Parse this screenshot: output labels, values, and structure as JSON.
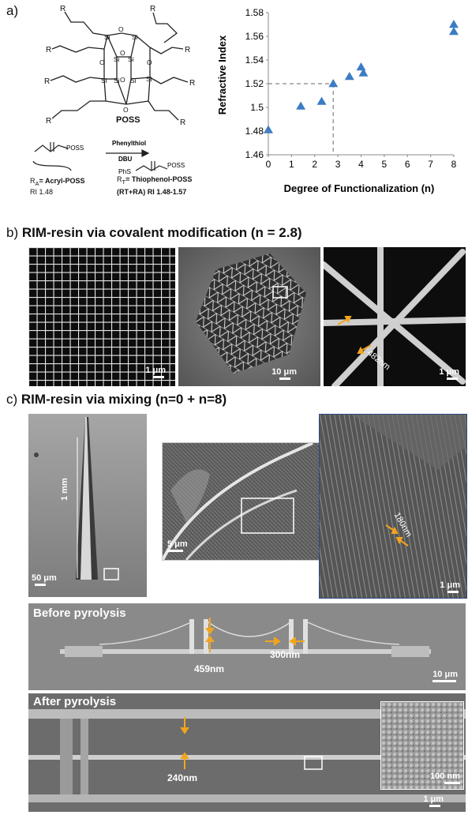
{
  "panel_a": {
    "letter": "a)",
    "molecule": {
      "r_labels": [
        "R",
        "R",
        "R",
        "R",
        "R",
        "R",
        "R",
        "R"
      ],
      "si_label": "Si",
      "o_label": "O",
      "name": "POSS"
    },
    "reaction": {
      "reagent1": "Phenylthiol",
      "reagent2": "DBU",
      "reactant_poss": "POSS",
      "reactant_label_prefix": "R",
      "reactant_label_sub": "A",
      "reactant_label_rest": "= Acryl-POSS",
      "reactant_ri": "RI 1.48",
      "product_phs": "PhS",
      "product_poss": "POSS",
      "product_label_prefix": "R",
      "product_label_sub": "T",
      "product_label_rest": "= Thiophenol-POSS",
      "product_mix": "(RT+RA) RI 1.48-1.57"
    }
  },
  "chart_data": {
    "type": "scatter",
    "xlabel": "Degree of Functionalization (n)",
    "ylabel": "Refractive Index",
    "xlim": [
      0,
      8
    ],
    "ylim": [
      1.46,
      1.58
    ],
    "xticks": [
      "0",
      "1",
      "2",
      "3",
      "4",
      "5",
      "6",
      "7",
      "8"
    ],
    "yticks": [
      "1.46",
      "1.48",
      "1.5",
      "1.52",
      "1.54",
      "1.56",
      "1.58"
    ],
    "grid": false,
    "marker_color": "#3b7dc4",
    "guide_color": "#9a9a9a",
    "points": [
      {
        "x": 0.0,
        "y": 1.481
      },
      {
        "x": 1.4,
        "y": 1.501
      },
      {
        "x": 2.3,
        "y": 1.505
      },
      {
        "x": 2.8,
        "y": 1.52
      },
      {
        "x": 3.5,
        "y": 1.526
      },
      {
        "x": 4.0,
        "y": 1.534
      },
      {
        "x": 4.1,
        "y": 1.529
      },
      {
        "x": 8.0,
        "y": 1.57
      },
      {
        "x": 8.0,
        "y": 1.564
      }
    ],
    "guide_point": {
      "x": 2.8,
      "y": 1.52
    }
  },
  "panel_b": {
    "letter": "b)",
    "title": "RIM-resin via covalent modification (n = 2.8)",
    "scale1": "1 μm",
    "scale2": "10 μm",
    "scale3": "1 μm",
    "dimension": "482nm"
  },
  "panel_c": {
    "letter": "c)",
    "title": "RIM-resin via mixing (n=0 + n=8)",
    "height_label": "1 mm",
    "scale1": "50 μm",
    "scale2": "5 μm",
    "scale3": "1 μm",
    "dimension": "180nm",
    "before_title": "Before pyrolysis",
    "before_dim1": "459nm",
    "before_dim2": "300nm",
    "before_scale": "10 μm",
    "after_title": "After pyrolysis",
    "after_dim": "240nm",
    "inset_scale": "100 nm",
    "after_scale": "1 μm"
  },
  "colors": {
    "arrow": "#f2a51c"
  }
}
